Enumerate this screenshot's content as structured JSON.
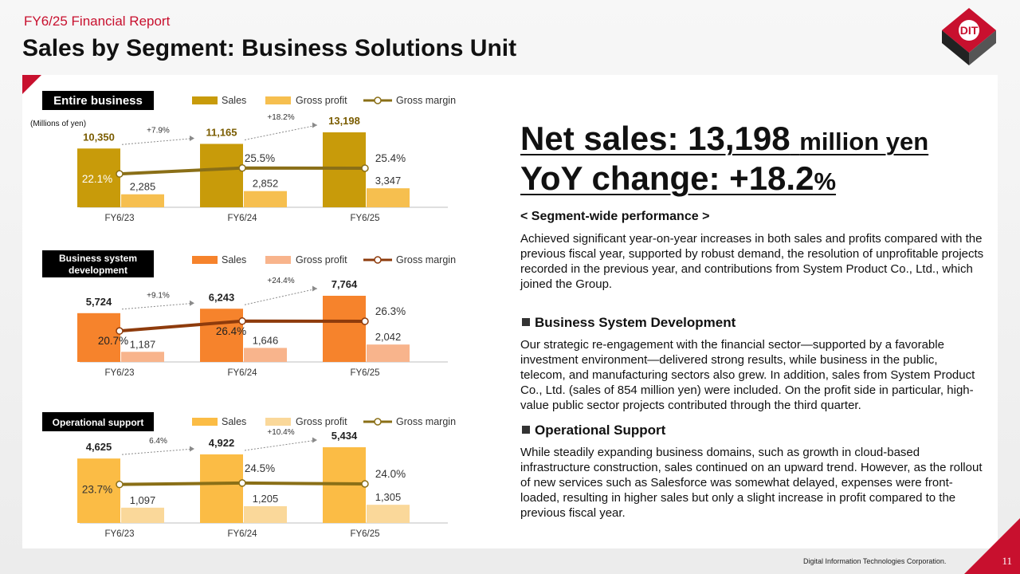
{
  "header": {
    "subtitle": "FY6/25 Financial Report",
    "title": "Sales by Segment: Business Solutions Unit",
    "logo_text": "DIT"
  },
  "footer": {
    "company": "Digital Information Technologies Corporation.",
    "page": "11"
  },
  "legend_labels": {
    "sales": "Sales",
    "gross_profit": "Gross profit",
    "gross_margin": "Gross margin"
  },
  "units_note": "(Millions of yen)",
  "chart_data": [
    {
      "type": "bar",
      "title": "Entire business",
      "categories": [
        "FY6/23",
        "FY6/24",
        "FY6/25"
      ],
      "series": [
        {
          "name": "Sales",
          "values": [
            10350,
            11165,
            13198
          ],
          "labels": [
            "10,350",
            "11,165",
            "13,198"
          ]
        },
        {
          "name": "Gross profit",
          "values": [
            2285,
            2852,
            3347
          ],
          "labels": [
            "2,285",
            "2,852",
            "3,347"
          ]
        },
        {
          "name": "Gross margin",
          "type": "line",
          "values": [
            22.1,
            25.5,
            25.4
          ],
          "labels": [
            "22.1%",
            "25.5%",
            "25.4%"
          ]
        }
      ],
      "growth_labels": [
        "+7.9%",
        "+18.2%"
      ],
      "colors": {
        "sales": "#c89b0a",
        "gross_profit": "#f6bf4f",
        "gross_margin": "#8a6f17"
      },
      "ylim": [
        0,
        17000
      ],
      "legend": "top"
    },
    {
      "type": "bar",
      "title": "Business system development",
      "categories": [
        "FY6/23",
        "FY6/24",
        "FY6/25"
      ],
      "series": [
        {
          "name": "Sales",
          "values": [
            5724,
            6243,
            7764
          ],
          "labels": [
            "5,724",
            "6,243",
            "7,764"
          ]
        },
        {
          "name": "Gross profit",
          "values": [
            1187,
            1646,
            2042
          ],
          "labels": [
            "1,187",
            "1,646",
            "2,042"
          ]
        },
        {
          "name": "Gross margin",
          "type": "line",
          "values": [
            20.7,
            26.4,
            26.3
          ],
          "labels": [
            "20.7%",
            "26.4%",
            "26.3%"
          ]
        }
      ],
      "growth_labels": [
        "+9.1%",
        "+24.4%"
      ],
      "colors": {
        "sales": "#f6832c",
        "gross_profit": "#f8b48c",
        "gross_margin": "#8e3b0c"
      },
      "ylim": [
        0,
        8500
      ],
      "legend": "top"
    },
    {
      "type": "bar",
      "title": "Operational support",
      "categories": [
        "FY6/23",
        "FY6/24",
        "FY6/25"
      ],
      "series": [
        {
          "name": "Sales",
          "values": [
            4625,
            4922,
            5434
          ],
          "labels": [
            "4,625",
            "4,922",
            "5,434"
          ]
        },
        {
          "name": "Gross profit",
          "values": [
            1097,
            1205,
            1305
          ],
          "labels": [
            "1,097",
            "1,205",
            "1,305"
          ]
        },
        {
          "name": "Gross margin",
          "type": "line",
          "values": [
            23.7,
            24.5,
            24.0
          ],
          "labels": [
            "23.7%",
            "24.5%",
            "24.0%"
          ]
        }
      ],
      "growth_labels": [
        "6.4%",
        "+10.4%"
      ],
      "colors": {
        "sales": "#fbbc45",
        "gross_profit": "#fad89a",
        "gross_margin": "#8a6f17"
      },
      "ylim": [
        0,
        5900
      ],
      "legend": "top"
    }
  ],
  "right": {
    "net_sales_prefix": "Net sales: 13,198",
    "net_sales_unit": "million yen",
    "yoy_prefix": "YoY change: +18.2",
    "yoy_unit": "%",
    "segment_heading": "< Segment-wide performance >",
    "segment_text": "Achieved significant year-on-year increases in both sales and profits compared with the previous fiscal year, supported by robust demand, the resolution of unprofitable projects recorded in the previous year, and contributions from System Product Co., Ltd., which joined the Group.",
    "bsd_heading": "Business System Development",
    "bsd_text": "Our strategic re-engagement with the financial sector—supported by a favorable investment environment—delivered strong results, while business in the public, telecom, and manufacturing sectors also grew. In addition, sales from System Product Co., Ltd. (sales of 854 million yen) were included. On the profit side in particular, high-value public sector projects contributed through the third quarter.",
    "ops_heading": "Operational Support",
    "ops_text": "While steadily expanding business domains, such as growth in cloud-based infrastructure construction, sales continued on an upward trend. However, as the rollout of new services such as Salesforce was somewhat delayed, expenses were front-loaded, resulting in higher sales but only a slight increase in profit compared to the previous fiscal year."
  }
}
